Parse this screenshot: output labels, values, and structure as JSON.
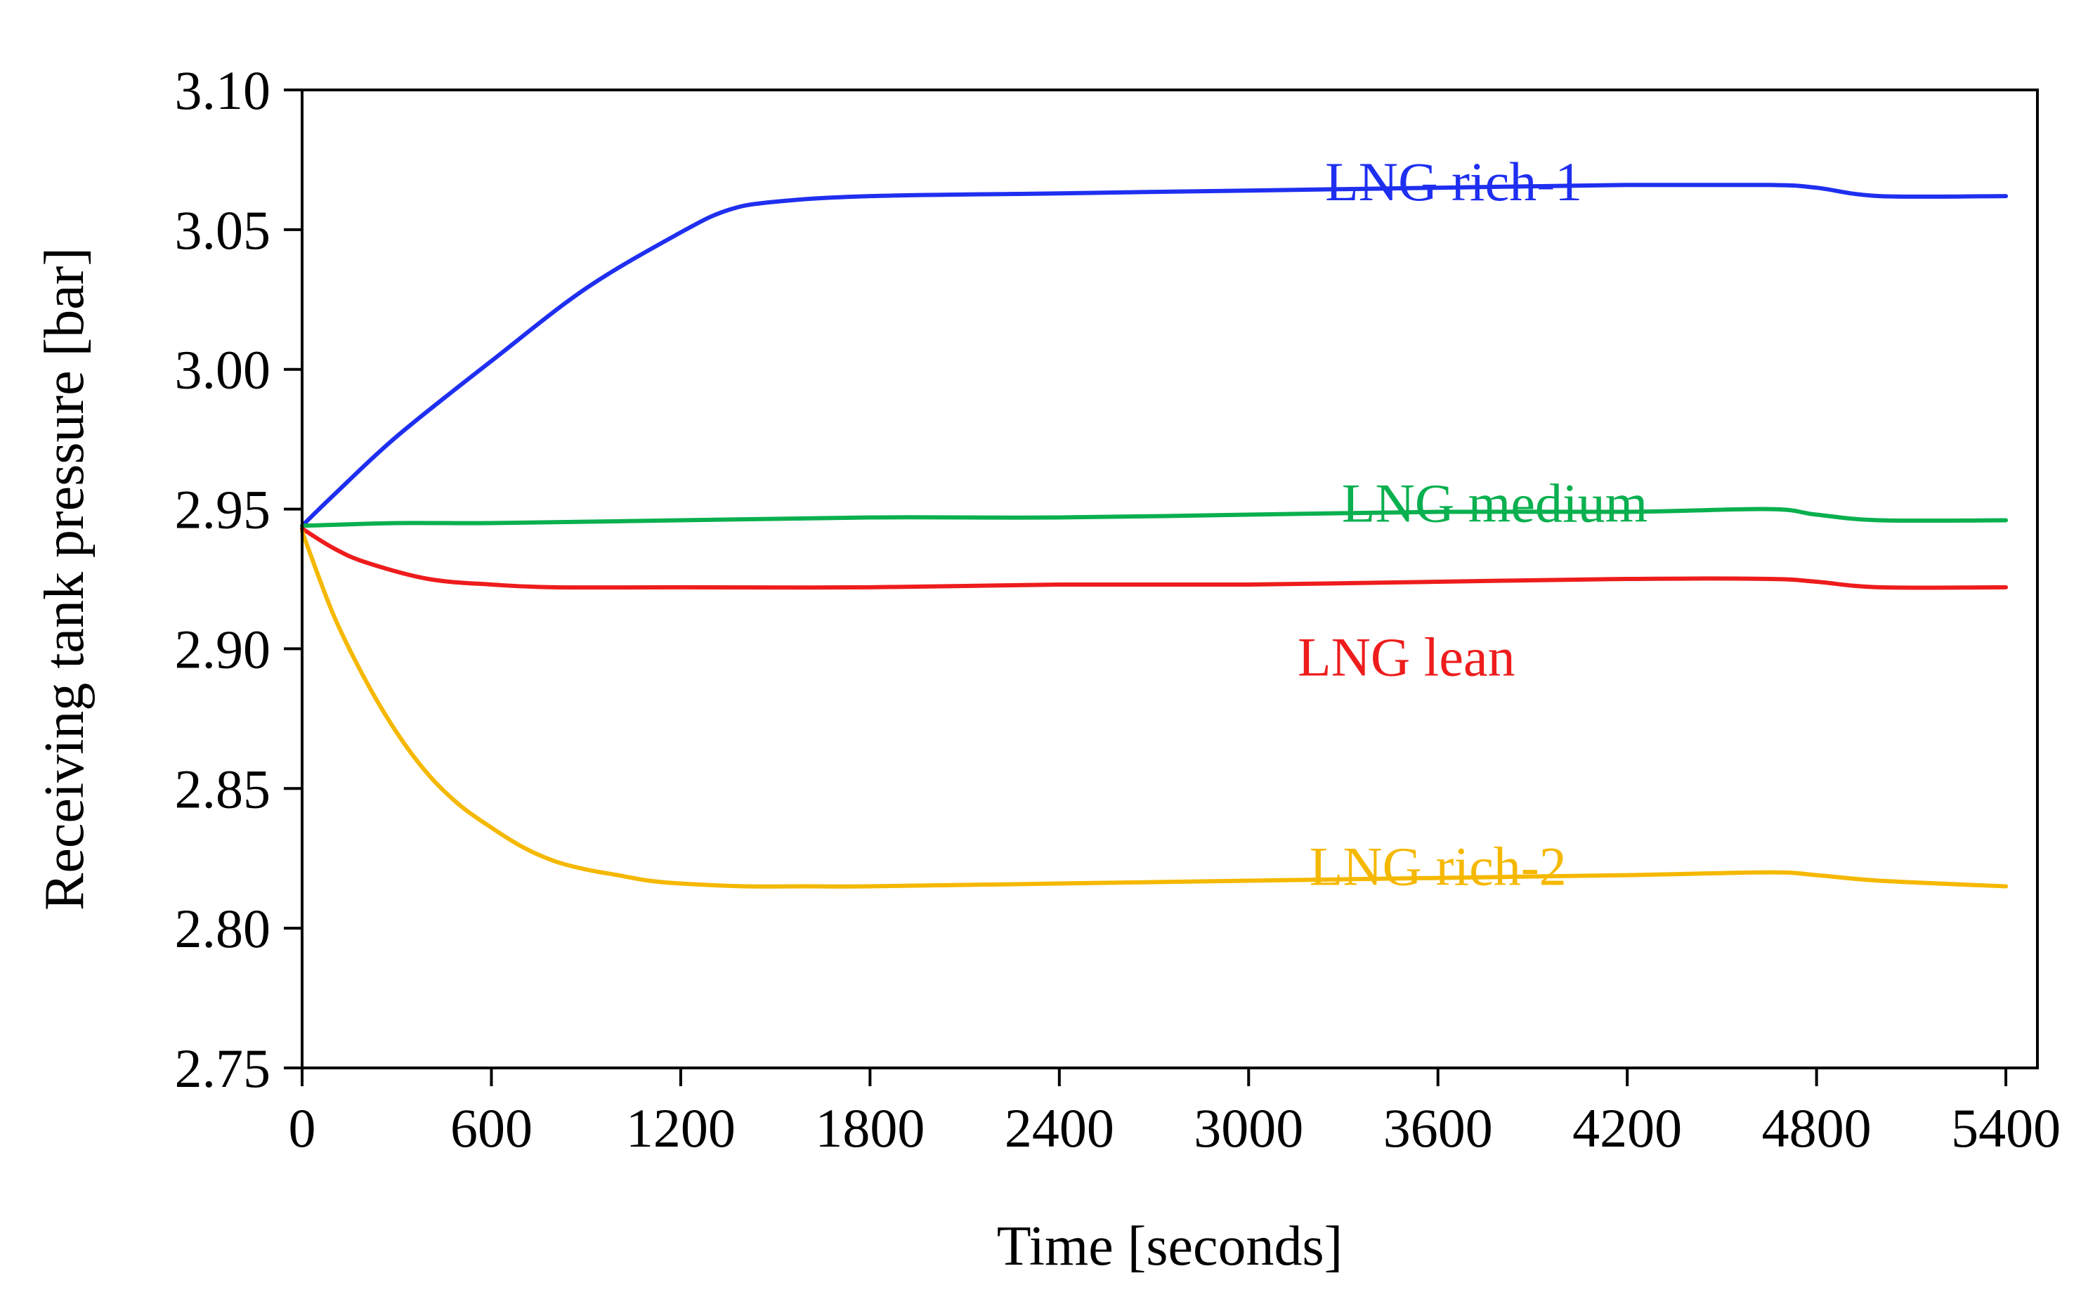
{
  "chart_data": {
    "type": "line",
    "title": "",
    "xlabel": "Time [seconds]",
    "ylabel": "Receiving tank pressure [bar]",
    "xlim": [
      0,
      5500
    ],
    "ylim": [
      2.75,
      3.1
    ],
    "x_ticks": [
      0,
      600,
      1200,
      1800,
      2400,
      3000,
      3600,
      4200,
      4800,
      5400
    ],
    "x_tick_labels": [
      "0",
      "600",
      "1200",
      "1800",
      "2400",
      "3000",
      "3600",
      "4200",
      "4800",
      "5400"
    ],
    "y_ticks": [
      2.75,
      2.8,
      2.85,
      2.9,
      2.95,
      3.0,
      3.05,
      3.1
    ],
    "y_tick_labels": [
      "2.75",
      "2.80",
      "2.85",
      "2.90",
      "2.95",
      "3.00",
      "3.05",
      "3.10"
    ],
    "grid": false,
    "series": [
      {
        "name": "LNG rich-1",
        "color": "#1f2ff0",
        "label_at": [
          3650,
          3.067
        ],
        "x": [
          0,
          100,
          300,
          600,
          900,
          1200,
          1350,
          1500,
          1800,
          2400,
          3000,
          3600,
          4200,
          4650,
          4800,
          5000,
          5400
        ],
        "y": [
          2.944,
          2.955,
          2.976,
          3.003,
          3.029,
          3.049,
          3.057,
          3.06,
          3.062,
          3.063,
          3.064,
          3.065,
          3.066,
          3.066,
          3.065,
          3.062,
          3.062
        ]
      },
      {
        "name": "LNG medium",
        "color": "#0ab04f",
        "label_at": [
          3780,
          2.952
        ],
        "x": [
          0,
          300,
          600,
          1200,
          1800,
          2400,
          3000,
          3600,
          4200,
          4650,
          4800,
          5000,
          5400
        ],
        "y": [
          2.944,
          2.945,
          2.945,
          2.946,
          2.947,
          2.947,
          2.948,
          2.949,
          2.949,
          2.95,
          2.948,
          2.946,
          2.946
        ]
      },
      {
        "name": "LNG lean",
        "color": "#ee1c1c",
        "label_at": [
          3500,
          2.897
        ],
        "x": [
          0,
          100,
          200,
          400,
          600,
          800,
          1200,
          1800,
          2400,
          3000,
          3600,
          4200,
          4650,
          4800,
          5000,
          5400
        ],
        "y": [
          2.943,
          2.936,
          2.931,
          2.925,
          2.923,
          2.922,
          2.922,
          2.922,
          2.923,
          2.923,
          2.924,
          2.925,
          2.925,
          2.924,
          2.922,
          2.922
        ]
      },
      {
        "name": "LNG rich-2",
        "color": "#f5b800",
        "label_at": [
          3600,
          2.822
        ],
        "x": [
          0,
          100,
          200,
          300,
          400,
          500,
          600,
          700,
          800,
          900,
          1000,
          1100,
          1200,
          1400,
          1600,
          1800,
          2400,
          3000,
          3600,
          4200,
          4650,
          4800,
          5000,
          5400
        ],
        "y": [
          2.942,
          2.912,
          2.889,
          2.87,
          2.855,
          2.844,
          2.836,
          2.829,
          2.824,
          2.821,
          2.819,
          2.817,
          2.816,
          2.815,
          2.815,
          2.815,
          2.816,
          2.817,
          2.818,
          2.819,
          2.82,
          2.819,
          2.817,
          2.815
        ]
      }
    ]
  }
}
